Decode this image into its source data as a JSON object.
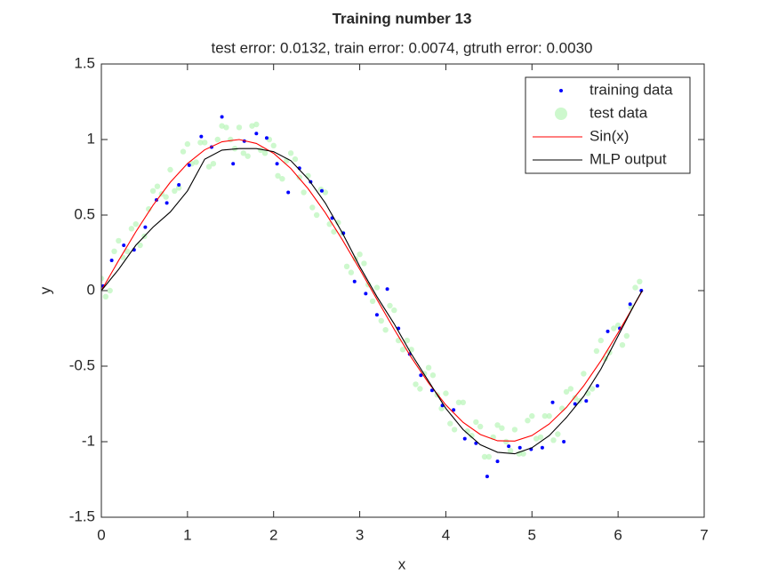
{
  "chart_data": {
    "type": "scatter-line",
    "title": "Training number 13",
    "subtitle": "test error: 0.0132, train error: 0.0074, gtruth error: 0.0030",
    "x_label": "x",
    "y_label": "y",
    "xlim": [
      0,
      7
    ],
    "ylim": [
      -1.5,
      1.5
    ],
    "xticks": [
      0,
      1,
      2,
      3,
      4,
      5,
      6,
      7
    ],
    "yticks": [
      -1.5,
      -1,
      -0.5,
      0,
      0.5,
      1,
      1.5
    ],
    "legend": "northeast",
    "series": [
      {
        "name": "test data",
        "mark": "circle",
        "color": "#b8f5b8",
        "x": [
          0,
          0.1,
          0.2,
          0.3,
          0.4,
          0.5,
          0.6,
          0.7,
          0.8,
          0.9,
          1.0,
          1.1,
          1.2,
          1.3,
          1.4,
          1.5,
          1.6,
          1.7,
          1.8,
          1.9,
          2.0,
          2.1,
          2.2,
          2.3,
          2.4,
          2.5,
          2.6,
          2.7,
          2.8,
          2.9,
          3.0,
          3.1,
          3.2,
          3.3,
          3.4,
          3.5,
          3.6,
          3.7,
          3.8,
          3.9,
          4.0,
          4.1,
          4.2,
          4.3,
          4.4,
          4.5,
          4.6,
          4.7,
          4.8,
          4.9,
          5.0,
          5.1,
          5.2,
          5.3,
          5.4,
          5.5,
          5.6,
          5.7,
          5.8,
          5.9,
          6.0,
          6.1,
          6.2,
          0.05,
          0.15,
          0.25,
          0.35,
          0.45,
          0.55,
          0.65,
          0.75,
          0.85,
          0.95,
          1.05,
          1.15,
          1.25,
          1.35,
          1.45,
          1.55,
          1.65,
          1.75,
          1.85,
          1.95,
          2.05,
          2.15,
          2.25,
          2.35,
          2.45,
          2.55,
          2.65,
          2.75,
          2.85,
          2.95,
          3.05,
          3.15,
          3.25,
          3.35,
          3.45,
          3.55,
          3.65,
          3.75,
          3.85,
          3.95,
          4.05,
          4.15,
          4.25,
          4.35,
          4.45,
          4.55,
          4.65,
          4.75,
          4.85,
          4.95,
          5.05,
          5.15,
          5.25,
          5.35,
          5.45,
          5.55,
          5.65,
          5.75,
          5.85,
          5.95,
          6.05,
          6.15,
          6.25
        ],
        "values": [
          0.08,
          0.0,
          0.33,
          0.26,
          0.44,
          0.36,
          0.66,
          0.64,
          0.8,
          0.68,
          0.97,
          0.85,
          0.98,
          0.84,
          1.09,
          1.0,
          1.08,
          0.89,
          1.1,
          0.91,
          0.96,
          0.74,
          0.91,
          0.75,
          0.76,
          0.5,
          0.65,
          0.39,
          0.38,
          0.12,
          0.24,
          0.04,
          0.02,
          -0.26,
          -0.13,
          -0.39,
          -0.39,
          -0.65,
          -0.51,
          -0.69,
          -0.68,
          -0.92,
          -0.74,
          -0.96,
          -0.9,
          -1.1,
          -0.89,
          -1.0,
          -0.92,
          -1.08,
          -0.83,
          -0.97,
          -0.83,
          -0.95,
          -0.67,
          -0.71,
          -0.55,
          -0.65,
          -0.33,
          -0.41,
          -0.23,
          -0.3,
          0.02,
          -0.04,
          0.26,
          0.22,
          0.41,
          0.3,
          0.54,
          0.69,
          0.62,
          0.66,
          0.92,
          0.84,
          0.98,
          0.82,
          1.0,
          1.08,
          0.94,
          0.91,
          1.09,
          0.93,
          1.0,
          0.76,
          0.86,
          0.87,
          0.65,
          0.55,
          0.67,
          0.44,
          0.45,
          0.16,
          0.21,
          0.18,
          -0.07,
          -0.2,
          -0.1,
          -0.33,
          -0.33,
          -0.62,
          -0.55,
          -0.56,
          -0.78,
          -0.88,
          -0.74,
          -0.93,
          -0.87,
          -1.1,
          -0.97,
          -0.91,
          -1.06,
          -1.08,
          -0.86,
          -0.98,
          -0.83,
          -0.99,
          -0.78,
          -0.65,
          -0.73,
          -0.68,
          -0.4,
          -0.45,
          -0.25,
          -0.36,
          -0.11,
          0.06
        ]
      },
      {
        "name": "training data",
        "mark": "dot",
        "color": "#0000ff",
        "x": [
          0.02,
          0.12,
          0.26,
          0.38,
          0.51,
          0.64,
          0.76,
          0.9,
          1.02,
          1.16,
          1.28,
          1.4,
          1.53,
          1.66,
          1.8,
          1.92,
          2.04,
          2.17,
          2.3,
          2.43,
          2.56,
          2.68,
          2.81,
          2.94,
          3.07,
          3.2,
          3.32,
          3.45,
          3.58,
          3.71,
          3.84,
          3.96,
          4.09,
          4.22,
          4.35,
          4.48,
          4.6,
          4.73,
          4.86,
          4.99,
          5.12,
          5.24,
          5.37,
          5.5,
          5.63,
          5.76,
          5.88,
          6.02,
          6.14,
          6.27
        ],
        "values": [
          0.03,
          0.2,
          0.3,
          0.27,
          0.42,
          0.6,
          0.58,
          0.7,
          0.83,
          1.02,
          0.95,
          1.15,
          0.84,
          0.99,
          1.04,
          1.01,
          0.84,
          0.65,
          0.81,
          0.72,
          0.66,
          0.48,
          0.38,
          0.06,
          -0.02,
          -0.16,
          0.01,
          -0.25,
          -0.42,
          -0.56,
          -0.66,
          -0.76,
          -0.79,
          -0.98,
          -1.01,
          -1.23,
          -1.13,
          -1.03,
          -1.04,
          -1.05,
          -1.04,
          -0.74,
          -1.0,
          -0.75,
          -0.73,
          -0.63,
          -0.27,
          -0.25,
          -0.09,
          0.0
        ]
      },
      {
        "name": "Sin(x)",
        "mark": "line",
        "color": "#ff0000",
        "x": [
          0,
          0.2,
          0.4,
          0.6,
          0.8,
          1.0,
          1.2,
          1.4,
          1.6,
          1.8,
          2.0,
          2.2,
          2.4,
          2.6,
          2.8,
          3.0,
          3.2,
          3.4,
          3.6,
          3.8,
          4.0,
          4.2,
          4.4,
          4.6,
          4.8,
          5.0,
          5.2,
          5.4,
          5.6,
          5.8,
          6.0,
          6.2,
          6.28
        ],
        "values": [
          0,
          0.199,
          0.389,
          0.565,
          0.717,
          0.841,
          0.932,
          0.985,
          1.0,
          0.974,
          0.909,
          0.808,
          0.675,
          0.516,
          0.335,
          0.141,
          -0.058,
          -0.256,
          -0.443,
          -0.612,
          -0.757,
          -0.872,
          -0.952,
          -0.994,
          -0.996,
          -0.959,
          -0.883,
          -0.773,
          -0.631,
          -0.465,
          -0.279,
          -0.083,
          -0.003
        ]
      },
      {
        "name": "MLP output",
        "mark": "line",
        "color": "#000000",
        "x": [
          0,
          0.2,
          0.4,
          0.6,
          0.8,
          1.0,
          1.2,
          1.4,
          1.6,
          1.8,
          2.0,
          2.2,
          2.4,
          2.6,
          2.8,
          3.0,
          3.2,
          3.4,
          3.6,
          3.8,
          4.0,
          4.2,
          4.4,
          4.6,
          4.8,
          5.0,
          5.2,
          5.4,
          5.6,
          5.8,
          6.0,
          6.2,
          6.28
        ],
        "values": [
          0.0,
          0.14,
          0.3,
          0.42,
          0.52,
          0.66,
          0.87,
          0.93,
          0.94,
          0.94,
          0.92,
          0.86,
          0.74,
          0.58,
          0.38,
          0.16,
          -0.04,
          -0.22,
          -0.42,
          -0.6,
          -0.78,
          -0.92,
          -1.02,
          -1.07,
          -1.08,
          -1.04,
          -0.96,
          -0.84,
          -0.7,
          -0.52,
          -0.3,
          -0.08,
          0.0
        ]
      }
    ]
  }
}
